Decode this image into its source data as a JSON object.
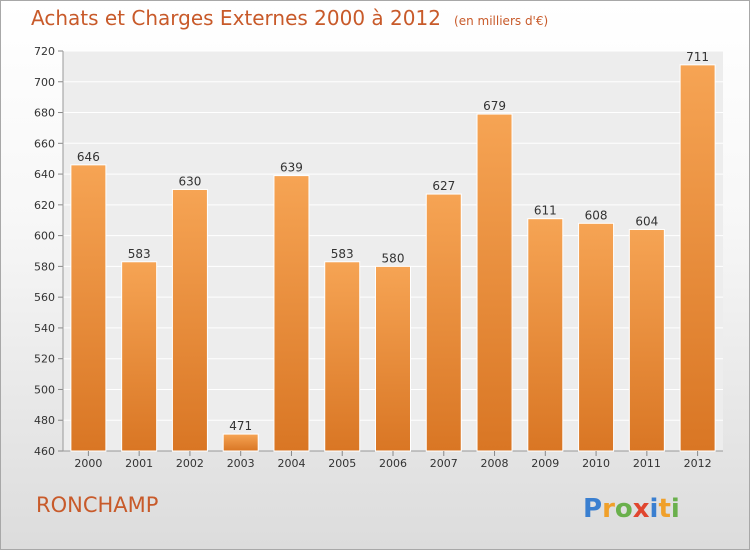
{
  "title": "Achats et Charges Externes 2000 à 2012",
  "subtitle": "(en milliers d'€)",
  "commune": "RONCHAMP",
  "logo_text": "Proxiti",
  "colors": {
    "bar_top": "#f6a454",
    "bar_bottom": "#d97624",
    "accent_text": "#c85a2a"
  },
  "chart_data": {
    "type": "bar",
    "categories": [
      "2000",
      "2001",
      "2002",
      "2003",
      "2004",
      "2005",
      "2006",
      "2007",
      "2008",
      "2009",
      "2010",
      "2011",
      "2012"
    ],
    "values": [
      646,
      583,
      630,
      471,
      639,
      583,
      580,
      627,
      679,
      611,
      608,
      604,
      711
    ],
    "ylim": [
      460,
      720
    ],
    "yticks": [
      460,
      480,
      500,
      520,
      540,
      560,
      580,
      600,
      620,
      640,
      660,
      680,
      700,
      720
    ],
    "grid": true,
    "legend": "none"
  }
}
